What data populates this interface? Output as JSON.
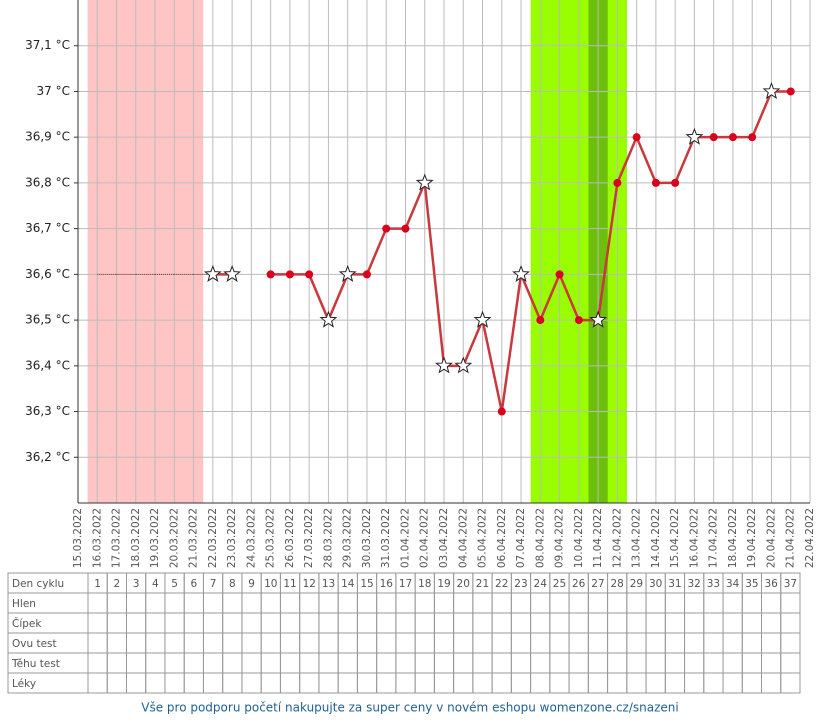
{
  "chart_data": {
    "type": "line",
    "categories": [
      "15.03.2022",
      "16.03.2022",
      "17.03.2022",
      "18.03.2022",
      "19.03.2022",
      "20.03.2022",
      "21.03.2022",
      "22.03.2022",
      "23.03.2022",
      "24.03.2022",
      "25.03.2022",
      "26.03.2022",
      "27.03.2022",
      "28.03.2022",
      "29.03.2022",
      "30.03.2022",
      "31.03.2022",
      "01.04.2022",
      "02.04.2022",
      "03.04.2022",
      "04.04.2022",
      "05.04.2022",
      "06.04.2022",
      "07.04.2022",
      "08.04.2022",
      "09.04.2022",
      "10.04.2022",
      "11.04.2022",
      "12.04.2022",
      "13.04.2022",
      "14.04.2022",
      "15.04.2022",
      "16.04.2022",
      "17.04.2022",
      "18.04.2022",
      "19.04.2022",
      "20.04.2022",
      "21.04.2022",
      "22.04.2022"
    ],
    "values": [
      null,
      36.6,
      36.6,
      36.6,
      36.6,
      36.6,
      36.6,
      36.6,
      36.6,
      null,
      36.6,
      36.6,
      36.6,
      36.5,
      36.6,
      36.6,
      36.7,
      36.7,
      36.8,
      36.4,
      36.4,
      36.5,
      36.3,
      36.6,
      36.5,
      36.6,
      36.5,
      36.5,
      36.8,
      36.9,
      36.8,
      36.8,
      36.9,
      36.9,
      36.9,
      36.9,
      37.0,
      37.0,
      null
    ],
    "markers": [
      "none",
      "none",
      "none",
      "none",
      "none",
      "none",
      "none",
      "star",
      "star",
      "none",
      "dot",
      "dot",
      "dot",
      "star",
      "star",
      "dot",
      "dot",
      "dot",
      "star",
      "star",
      "star",
      "star",
      "dot",
      "star",
      "dot",
      "dot",
      "dot",
      "star",
      "dot",
      "dot",
      "dot",
      "dot",
      "star",
      "dot",
      "dot",
      "dot",
      "star",
      "dot",
      "none"
    ],
    "color": "#c8383c",
    "dot_color": "#d9001b",
    "ylim": [
      36.1,
      37.2
    ],
    "yticks": [
      {
        "value": 36.2,
        "label": "36,2 °C"
      },
      {
        "value": 36.3,
        "label": "36,3 °C"
      },
      {
        "value": 36.4,
        "label": "36,4 °C"
      },
      {
        "value": 36.5,
        "label": "36,5 °C"
      },
      {
        "value": 36.6,
        "label": "36,6 °C"
      },
      {
        "value": 36.7,
        "label": "36,7 °C"
      },
      {
        "value": 36.8,
        "label": "36,8 °C"
      },
      {
        "value": 36.9,
        "label": "36,9 °C"
      },
      {
        "value": 37,
        "label": "37 °C"
      },
      {
        "value": 37.1,
        "label": "37,1 °C"
      }
    ],
    "grid": true,
    "period": {
      "start": 1,
      "end": 6,
      "color": "#ffc5c5"
    },
    "fertile": {
      "start": 24,
      "end": 28,
      "color": "#99ff00"
    },
    "peak": {
      "start": 27,
      "end": 27,
      "color": "#6cbf0a"
    }
  },
  "table": {
    "rows": [
      "Den cyklu",
      "Hlen",
      "Čípek",
      "Ovu test",
      "Těhu test",
      "Léky"
    ],
    "days": [
      1,
      2,
      3,
      4,
      5,
      6,
      7,
      8,
      9,
      10,
      11,
      12,
      13,
      14,
      15,
      16,
      17,
      18,
      19,
      20,
      21,
      22,
      23,
      24,
      25,
      26,
      27,
      28,
      29,
      30,
      31,
      32,
      33,
      34,
      35,
      36,
      37
    ]
  },
  "footer": "Vše pro podporu početí nakupujte za super ceny v novém eshopu womenzone.cz/snazeni"
}
